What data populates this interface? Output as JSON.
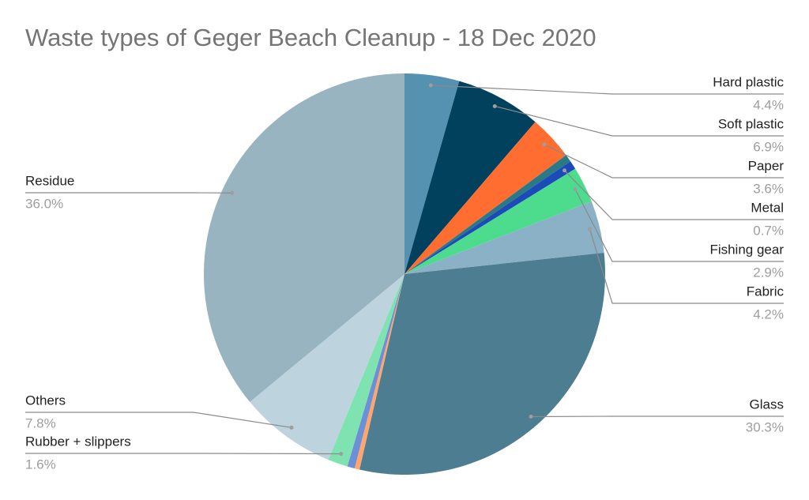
{
  "chart_data": {
    "type": "pie",
    "title": "Waste types of Geger Beach Cleanup - 18 Dec 2020",
    "categories": [
      "Hard plastic",
      "Soft plastic",
      "Paper",
      null,
      "Metal",
      "Fishing gear",
      "Fabric",
      "Glass",
      null,
      null,
      "Rubber + slippers",
      "Others",
      "Residue"
    ],
    "values": [
      4.4,
      6.9,
      3.6,
      0.6,
      0.7,
      2.9,
      4.2,
      30.3,
      0.4,
      0.6,
      1.6,
      7.8,
      36.0
    ],
    "value_labels": [
      "4.4%",
      "6.9%",
      "3.6%",
      null,
      "0.7%",
      "2.9%",
      "4.2%",
      "30.3%",
      null,
      null,
      "1.6%",
      "7.8%",
      "36.0%"
    ],
    "colors": [
      "#5591b0",
      "#01415e",
      "#ff6d31",
      "#2a7a86",
      "#1c4ab9",
      "#4ddc8d",
      "#8ab1c5",
      "#4d7d91",
      "#ffa56d",
      "#6c8fd5",
      "#7ee3b0",
      "#bdd3de",
      "#98b4c0"
    ]
  }
}
